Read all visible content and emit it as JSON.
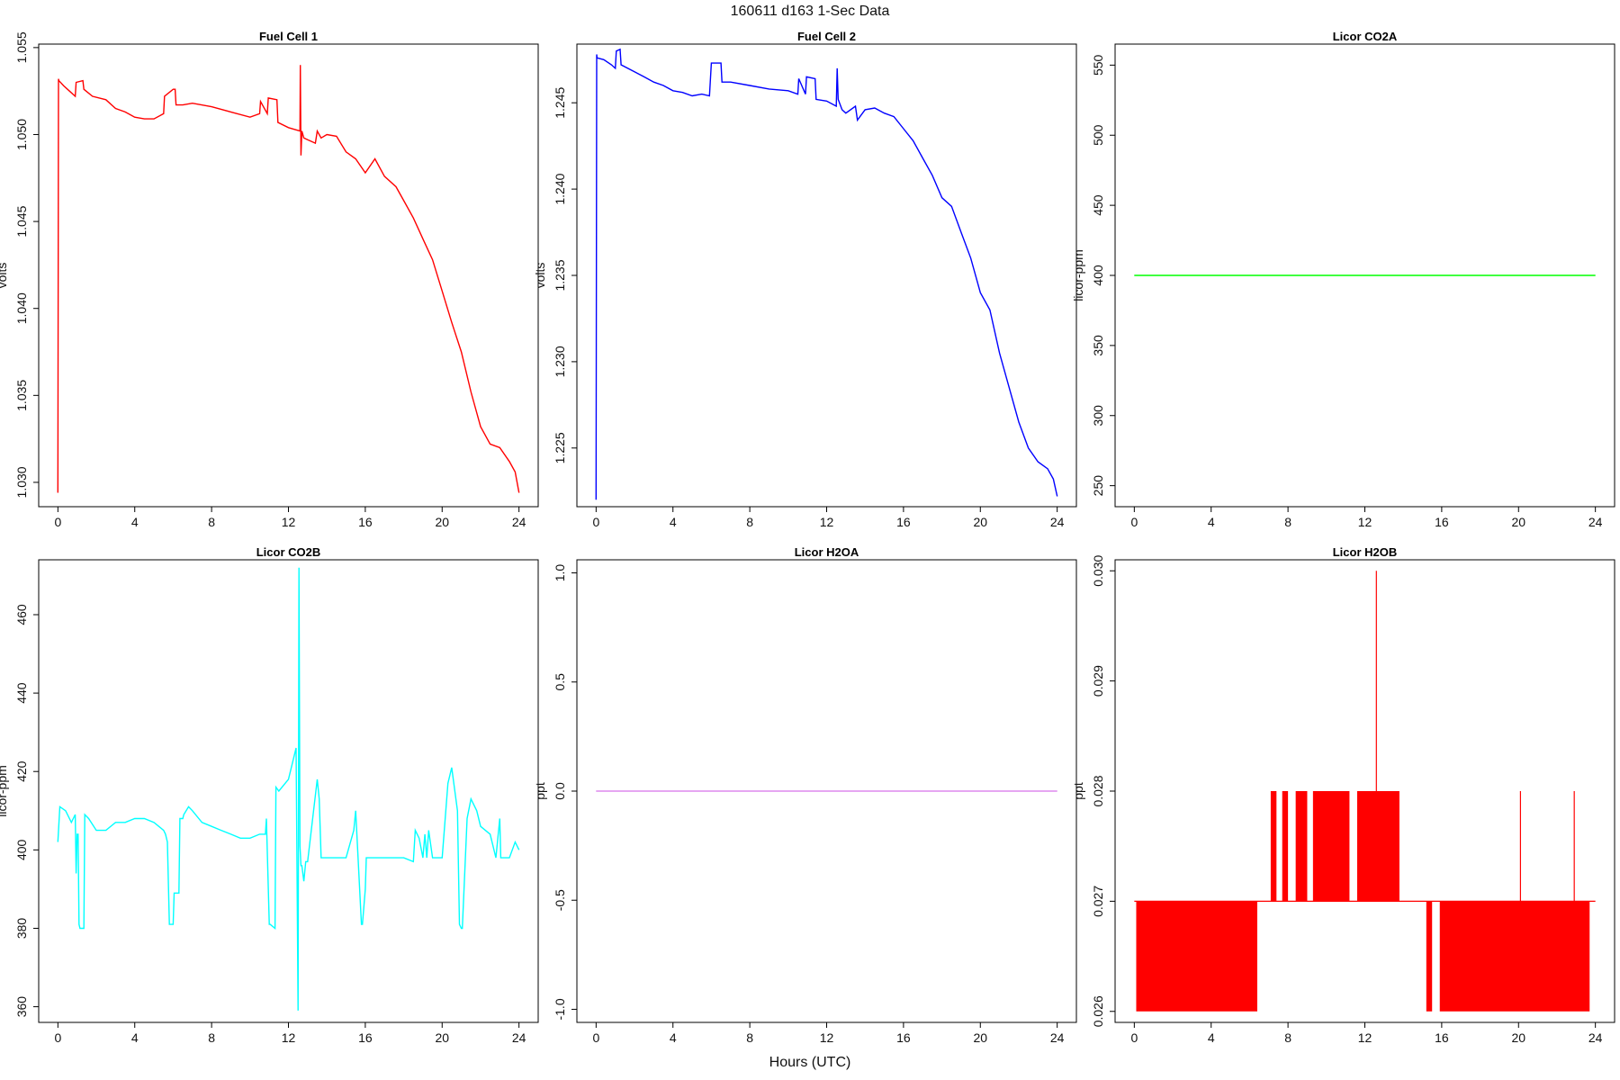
{
  "title": {
    "date": "160611",
    "day": "d163",
    "res": "1-Sec Data"
  },
  "xlabel": "Hours (UTC)",
  "chart_data": [
    {
      "type": "line",
      "title": "Fuel Cell 1",
      "ylabel": "volts",
      "color": "#ff0000",
      "xlim": [
        -1,
        25
      ],
      "ylim": [
        1.0286,
        1.0552
      ],
      "xticks": [
        0,
        4,
        8,
        12,
        16,
        20,
        24
      ],
      "yticks": [
        "1.030",
        "1.035",
        "1.040",
        "1.045",
        "1.050",
        "1.055"
      ],
      "x": [
        0,
        0.03,
        0.05,
        0.3,
        0.6,
        0.9,
        0.95,
        1.3,
        1.35,
        1.8,
        2.5,
        3.0,
        3.5,
        4.0,
        4.5,
        5.0,
        5.5,
        5.55,
        6.0,
        6.1,
        6.15,
        6.5,
        7.0,
        8.0,
        9.0,
        10.0,
        10.5,
        10.55,
        10.9,
        10.95,
        11.4,
        11.45,
        12.0,
        12.6,
        12.62,
        12.65,
        12.7,
        12.8,
        13.0,
        13.4,
        13.5,
        13.7,
        14.0,
        14.5,
        15.0,
        15.5,
        16.0,
        16.5,
        17.0,
        17.6,
        18.0,
        18.5,
        19.0,
        19.5,
        20.0,
        20.5,
        21.0,
        21.5,
        22.0,
        22.5,
        23.0,
        23.5,
        23.8,
        24.0
      ],
      "y": [
        1.0294,
        1.0532,
        1.0531,
        1.0528,
        1.0525,
        1.0522,
        1.053,
        1.0531,
        1.0526,
        1.0522,
        1.052,
        1.0515,
        1.0513,
        1.051,
        1.0509,
        1.0509,
        1.0512,
        1.0522,
        1.0526,
        1.0526,
        1.0517,
        1.0517,
        1.0518,
        1.0516,
        1.0513,
        1.051,
        1.0512,
        1.0519,
        1.0512,
        1.0521,
        1.052,
        1.0507,
        1.0504,
        1.0502,
        1.054,
        1.0488,
        1.0502,
        1.0498,
        1.0497,
        1.0495,
        1.0502,
        1.0498,
        1.05,
        1.0499,
        1.049,
        1.0486,
        1.0478,
        1.0486,
        1.0476,
        1.047,
        1.0462,
        1.0452,
        1.044,
        1.0428,
        1.041,
        1.0392,
        1.0375,
        1.0352,
        1.0332,
        1.0322,
        1.032,
        1.0312,
        1.0306,
        1.0294
      ]
    },
    {
      "type": "line",
      "title": "Fuel Cell 2",
      "ylabel": "volts",
      "color": "#0000ff",
      "xlim": [
        -1,
        25
      ],
      "ylim": [
        1.2216,
        1.2484
      ],
      "xticks": [
        0,
        4,
        8,
        12,
        16,
        20,
        24
      ],
      "yticks": [
        "1.225",
        "1.230",
        "1.235",
        "1.240",
        "1.245"
      ],
      "x": [
        0,
        0.03,
        0.05,
        0.4,
        0.8,
        1.0,
        1.05,
        1.25,
        1.3,
        2.0,
        2.5,
        3.0,
        3.5,
        4.0,
        4.5,
        5.0,
        5.5,
        5.9,
        6.0,
        6.5,
        6.55,
        7.0,
        8.0,
        9.0,
        10.0,
        10.5,
        10.55,
        10.9,
        10.95,
        11.4,
        11.45,
        12.0,
        12.5,
        12.55,
        12.6,
        12.8,
        13.0,
        13.5,
        13.6,
        14.0,
        14.5,
        15.0,
        15.5,
        16.0,
        16.5,
        17.0,
        17.5,
        18.0,
        18.5,
        19.0,
        19.5,
        20.0,
        20.5,
        21.0,
        21.5,
        22.0,
        22.5,
        23.0,
        23.5,
        23.8,
        24.0
      ],
      "y": [
        1.222,
        1.2478,
        1.2476,
        1.2475,
        1.2472,
        1.247,
        1.248,
        1.2481,
        1.2472,
        1.2468,
        1.2465,
        1.2462,
        1.246,
        1.2457,
        1.2456,
        1.2454,
        1.2455,
        1.2454,
        1.2473,
        1.2473,
        1.2462,
        1.2462,
        1.246,
        1.2458,
        1.2457,
        1.2455,
        1.2464,
        1.2455,
        1.2465,
        1.2464,
        1.2452,
        1.2451,
        1.2448,
        1.247,
        1.2452,
        1.2446,
        1.2444,
        1.2448,
        1.244,
        1.2446,
        1.2447,
        1.2444,
        1.2442,
        1.2435,
        1.2428,
        1.2418,
        1.2408,
        1.2395,
        1.239,
        1.2375,
        1.236,
        1.234,
        1.233,
        1.2305,
        1.2285,
        1.2265,
        1.225,
        1.2242,
        1.2238,
        1.2232,
        1.2222
      ]
    },
    {
      "type": "line",
      "title": "Licor CO2A",
      "ylabel": "licor-ppm",
      "color": "#00ff00",
      "xlim": [
        -1,
        25
      ],
      "ylim": [
        235,
        565
      ],
      "xticks": [
        0,
        4,
        8,
        12,
        16,
        20,
        24
      ],
      "yticks": [
        "250",
        "300",
        "350",
        "400",
        "450",
        "500",
        "550"
      ],
      "x": [
        0,
        24
      ],
      "y": [
        400,
        400
      ]
    },
    {
      "type": "line",
      "title": "Licor CO2B",
      "ylabel": "licor-ppm",
      "color": "#00ffff",
      "xlim": [
        -1,
        25
      ],
      "ylim": [
        356,
        474
      ],
      "xticks": [
        0,
        4,
        8,
        12,
        16,
        20,
        24
      ],
      "yticks": [
        "360",
        "380",
        "400",
        "420",
        "440",
        "460"
      ],
      "x": [
        0,
        0.1,
        0.4,
        0.7,
        0.9,
        0.95,
        1.0,
        1.05,
        1.1,
        1.15,
        1.35,
        1.4,
        1.6,
        2.0,
        2.5,
        3.0,
        3.5,
        4.0,
        4.5,
        5.0,
        5.5,
        5.6,
        5.7,
        5.8,
        6.0,
        6.05,
        6.3,
        6.35,
        6.5,
        6.55,
        6.8,
        7.0,
        7.5,
        8.0,
        8.5,
        9.0,
        9.5,
        10.0,
        10.5,
        10.8,
        10.85,
        11.0,
        11.05,
        11.3,
        11.35,
        11.5,
        12.0,
        12.4,
        12.5,
        12.55,
        12.6,
        12.65,
        12.7,
        12.8,
        12.9,
        13.0,
        13.5,
        13.6,
        13.7,
        13.8,
        14.0,
        14.5,
        15.0,
        15.4,
        15.5,
        15.8,
        15.85,
        16.0,
        16.05,
        16.2,
        16.4,
        17.0,
        17.5,
        18.0,
        18.5,
        18.6,
        18.8,
        19.0,
        19.1,
        19.2,
        19.3,
        19.5,
        20.0,
        20.3,
        20.5,
        20.8,
        20.9,
        21.0,
        21.05,
        21.3,
        21.5,
        21.8,
        22.0,
        22.5,
        22.8,
        23.0,
        23.05,
        23.1,
        23.5,
        23.8,
        24.0
      ],
      "y": [
        402,
        411,
        410,
        407,
        409,
        394,
        404,
        404,
        381,
        380,
        380,
        409,
        408,
        405,
        405,
        407,
        407,
        408,
        408,
        407,
        405,
        404,
        402,
        381,
        381,
        389,
        389,
        408,
        408,
        409,
        411,
        410,
        407,
        406,
        405,
        404,
        403,
        403,
        404,
        404,
        408,
        381,
        381,
        380,
        416,
        415,
        418,
        426,
        359,
        472,
        401,
        396,
        396,
        392,
        397,
        397,
        418,
        413,
        398,
        398,
        398,
        398,
        398,
        405,
        410,
        381,
        381,
        390,
        398,
        398,
        398,
        398,
        398,
        398,
        397,
        405,
        403,
        398,
        404,
        398,
        405,
        398,
        398,
        417,
        421,
        410,
        381,
        380,
        380,
        408,
        413,
        410,
        406,
        404,
        398,
        408,
        398,
        398,
        398,
        402,
        400
      ]
    },
    {
      "type": "line",
      "title": "Licor H2OA",
      "ylabel": "ppt",
      "color": "#dd88ee",
      "xlim": [
        -1,
        25
      ],
      "ylim": [
        -1.06,
        1.06
      ],
      "xticks": [
        0,
        4,
        8,
        12,
        16,
        20,
        24
      ],
      "yticks": [
        "-1.0",
        "-0.5",
        "0.0",
        "0.5",
        "1.0"
      ],
      "x": [
        0,
        24
      ],
      "y": [
        0,
        0
      ]
    },
    {
      "type": "line",
      "title": "Licor H2OB",
      "ylabel": "ppt",
      "color": "#ff0000",
      "xlim": [
        -1,
        25
      ],
      "ylim": [
        0.0259,
        0.0301
      ],
      "xticks": [
        0,
        4,
        8,
        12,
        16,
        20,
        24
      ],
      "yticks": [
        "0.026",
        "0.027",
        "0.028",
        "0.029",
        "0.030"
      ],
      "dense_bands": [
        [
          0.1,
          6.4,
          0.026,
          0.027
        ],
        [
          7.1,
          7.4,
          0.027,
          0.028
        ],
        [
          7.7,
          8.0,
          0.027,
          0.028
        ],
        [
          8.4,
          9.0,
          0.027,
          0.028
        ],
        [
          9.3,
          11.2,
          0.027,
          0.028
        ],
        [
          11.6,
          13.8,
          0.027,
          0.028
        ],
        [
          15.2,
          15.5,
          0.026,
          0.027
        ],
        [
          15.9,
          23.7,
          0.026,
          0.027
        ]
      ],
      "baseline": 0.027,
      "spikes": [
        [
          12.6,
          0.03
        ],
        [
          20.1,
          0.028
        ],
        [
          22.9,
          0.028
        ]
      ]
    }
  ]
}
